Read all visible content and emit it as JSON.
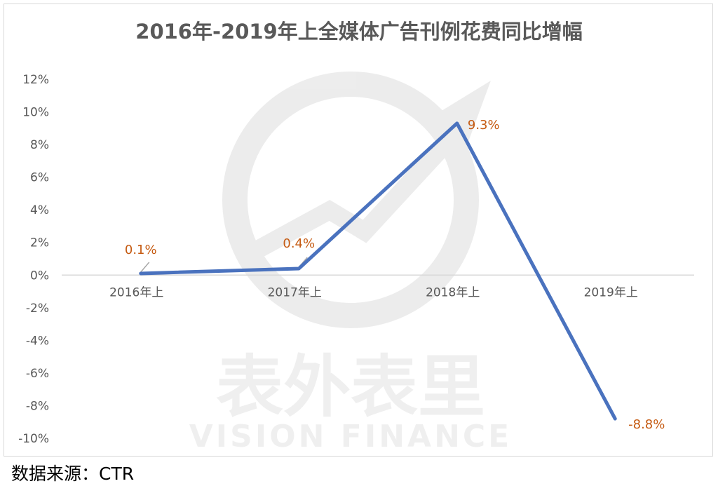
{
  "chart_data": {
    "type": "line",
    "title": "2016年-2019年上全媒体广告刊例花费同比增幅",
    "categories": [
      "2016年上",
      "2017年上",
      "2018年上",
      "2019年上"
    ],
    "series": [
      {
        "values": [
          0.1,
          0.4,
          9.3,
          -8.8
        ],
        "color": "#4a72be"
      }
    ],
    "data_labels": [
      "0.1%",
      "0.4%",
      "9.3%",
      "-8.8%"
    ],
    "y_ticks": [
      12,
      10,
      8,
      6,
      4,
      2,
      0,
      -2,
      -4,
      -6,
      -8,
      -10
    ],
    "y_tick_labels": [
      "12%",
      "10%",
      "8%",
      "6%",
      "4%",
      "2%",
      "0%",
      "-2%",
      "-4%",
      "-6%",
      "-8%",
      "-10%"
    ],
    "ylim": [
      -10,
      12
    ],
    "xlabel": "",
    "ylabel": "",
    "grid": false,
    "legend": "none",
    "label_color": "#c55a11"
  },
  "watermark": {
    "cn_text": "表外表里",
    "en_text": "VISION FINANCE"
  },
  "footer": {
    "source_label": "数据来源：",
    "source_value": "CTR"
  }
}
